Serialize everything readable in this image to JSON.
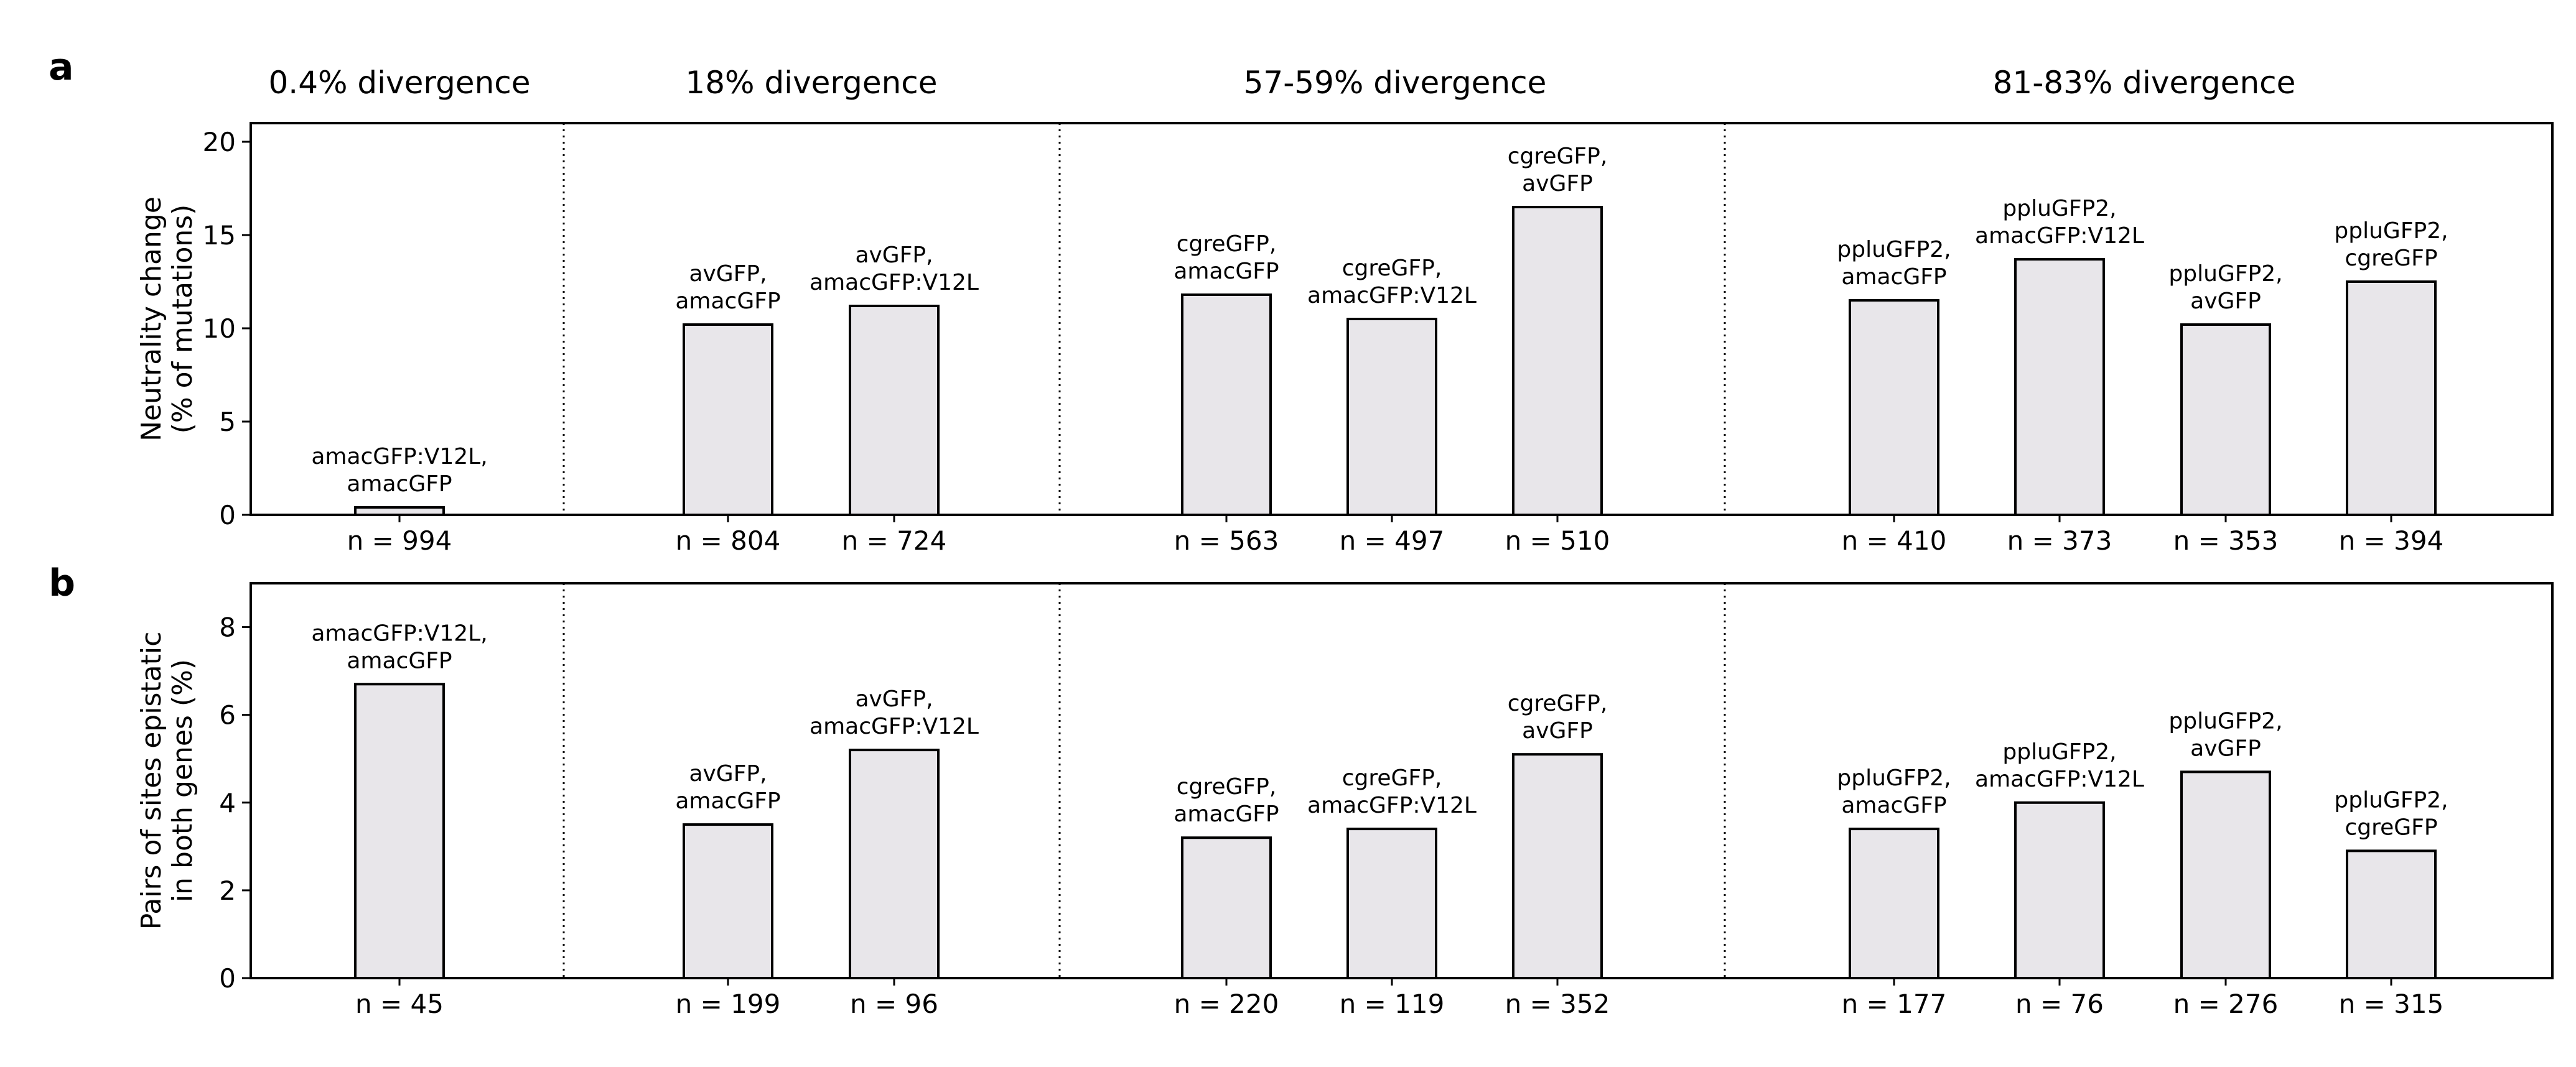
{
  "panel_letters": [
    "a",
    "b"
  ],
  "group_titles": [
    "0.4% divergence",
    "18% divergence",
    "57-59% divergence",
    "81-83% divergence"
  ],
  "chart_data": [
    {
      "type": "bar",
      "panel": "a",
      "ylabel": [
        "Neutrality change",
        "(% of mutations)"
      ],
      "ylim": [
        0,
        21
      ],
      "yticks": [
        0,
        5,
        10,
        15,
        20
      ],
      "grid": false,
      "groups": [
        {
          "title": "0.4% divergence",
          "bars": [
            {
              "label": [
                "amacGFP:V12L,",
                "amacGFP"
              ],
              "value": 0.4,
              "n": "n = 994"
            }
          ]
        },
        {
          "title": "18% divergence",
          "bars": [
            {
              "label": [
                "avGFP,",
                "amacGFP"
              ],
              "value": 10.2,
              "n": "n = 804"
            },
            {
              "label": [
                "avGFP,",
                "amacGFP:V12L"
              ],
              "value": 11.2,
              "n": "n = 724"
            }
          ]
        },
        {
          "title": "57-59% divergence",
          "bars": [
            {
              "label": [
                "cgreGFP,",
                "amacGFP"
              ],
              "value": 11.8,
              "n": "n = 563"
            },
            {
              "label": [
                "cgreGFP,",
                "amacGFP:V12L"
              ],
              "value": 10.5,
              "n": "n = 497"
            },
            {
              "label": [
                "cgreGFP,",
                "avGFP"
              ],
              "value": 16.5,
              "n": "n = 510"
            }
          ]
        },
        {
          "title": "81-83% divergence",
          "bars": [
            {
              "label": [
                "ppluGFP2,",
                "amacGFP"
              ],
              "value": 11.5,
              "n": "n = 410"
            },
            {
              "label": [
                "ppluGFP2,",
                "amacGFP:V12L"
              ],
              "value": 13.7,
              "n": "n = 373"
            },
            {
              "label": [
                "ppluGFP2,",
                "avGFP"
              ],
              "value": 10.2,
              "n": "n = 353"
            },
            {
              "label": [
                "ppluGFP2,",
                "cgreGFP"
              ],
              "value": 12.5,
              "n": "n = 394"
            }
          ]
        }
      ]
    },
    {
      "type": "bar",
      "panel": "b",
      "ylabel": [
        "Pairs of sites epistatic",
        "in both genes (%)"
      ],
      "ylim": [
        0,
        9
      ],
      "yticks": [
        0,
        2,
        4,
        6,
        8
      ],
      "grid": false,
      "groups": [
        {
          "bars": [
            {
              "label": [
                "amacGFP:V12L,",
                "amacGFP"
              ],
              "value": 6.7,
              "n": "n = 45"
            }
          ]
        },
        {
          "bars": [
            {
              "label": [
                "avGFP,",
                "amacGFP"
              ],
              "value": 3.5,
              "n": "n = 199"
            },
            {
              "label": [
                "avGFP,",
                "amacGFP:V12L"
              ],
              "value": 5.2,
              "n": "n = 96"
            }
          ]
        },
        {
          "bars": [
            {
              "label": [
                "cgreGFP,",
                "amacGFP"
              ],
              "value": 3.2,
              "n": "n = 220"
            },
            {
              "label": [
                "cgreGFP,",
                "amacGFP:V12L"
              ],
              "value": 3.4,
              "n": "n = 119"
            },
            {
              "label": [
                "cgreGFP,",
                "avGFP"
              ],
              "value": 5.1,
              "n": "n = 352"
            }
          ]
        },
        {
          "bars": [
            {
              "label": [
                "ppluGFP2,",
                "amacGFP"
              ],
              "value": 3.4,
              "n": "n = 177"
            },
            {
              "label": [
                "ppluGFP2,",
                "amacGFP:V12L"
              ],
              "value": 4.0,
              "n": "n = 76"
            },
            {
              "label": [
                "ppluGFP2,",
                "avGFP"
              ],
              "value": 4.7,
              "n": "n = 276"
            },
            {
              "label": [
                "ppluGFP2,",
                "cgreGFP"
              ],
              "value": 2.9,
              "n": "n = 315"
            }
          ]
        }
      ]
    }
  ],
  "colors": {
    "bar_fill": "#e8e6ea",
    "bar_stroke": "#000000",
    "axis": "#000000",
    "divider": "#000000"
  }
}
